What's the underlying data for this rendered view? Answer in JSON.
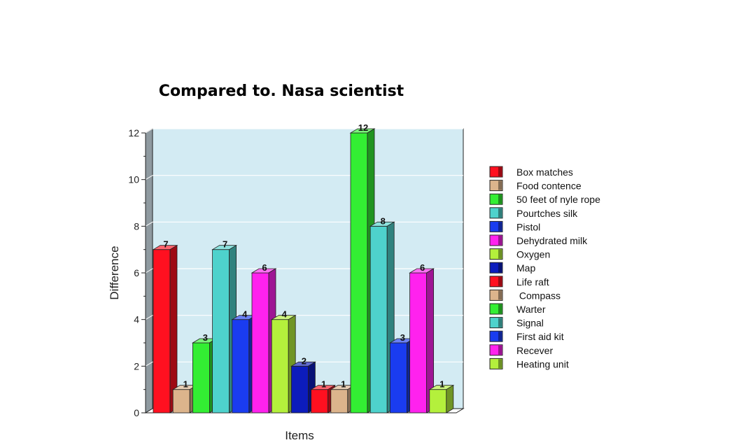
{
  "chart_data": {
    "type": "bar",
    "title": "Compared to. Nasa scientist",
    "xlabel": "Items",
    "ylabel": "Difference",
    "ylim": [
      0,
      12
    ],
    "yticks": [
      0,
      2,
      4,
      6,
      8,
      10,
      12
    ],
    "grid": true,
    "legend_position": "right",
    "categories": [
      "Box matches",
      "Food contence",
      "50 feet of nyle rope",
      "Pourtches silk",
      "Pistol",
      "Dehydrated milk",
      "Oxygen",
      "Map",
      "Life raft",
      " Compass",
      "Warter",
      "Signal",
      "First aid kit",
      "Recever",
      "Heating unit"
    ],
    "values": [
      7,
      1,
      3,
      7,
      4,
      6,
      4,
      2,
      1,
      1,
      12,
      8,
      3,
      6,
      1
    ],
    "colors": [
      "#ff1020",
      "#dcb48c",
      "#33ee33",
      "#4ed2cc",
      "#1a3cf0",
      "#ff22ee",
      "#b4f03c",
      "#0c1cbc",
      "#ff1020",
      "#dcb48c",
      "#33ee33",
      "#4ed2cc",
      "#1a3cf0",
      "#ff22ee",
      "#b4f03c"
    ]
  }
}
